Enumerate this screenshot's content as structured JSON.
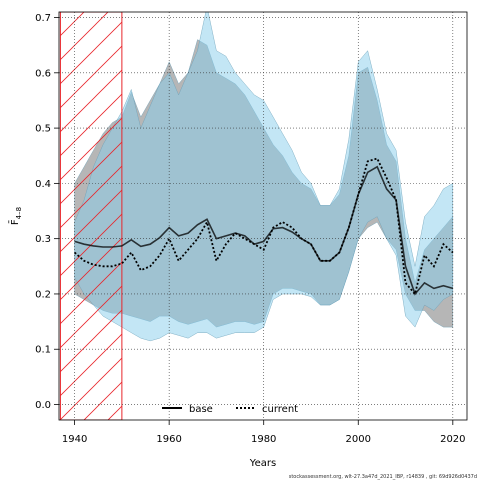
{
  "chart_data": {
    "type": "line",
    "title": "",
    "xlabel": "Years",
    "ylabel": "F̄",
    "ylabel_sub": "4–8",
    "xlim": [
      1936.7,
      2023.0
    ],
    "ylim": [
      -0.028,
      0.71
    ],
    "xticks": [
      1940,
      1960,
      1980,
      2000,
      2020
    ],
    "yticks": [
      0.0,
      0.1,
      0.2,
      0.3,
      0.4,
      0.5,
      0.6,
      0.7
    ],
    "ytick_labels": [
      "0.0",
      "0.1",
      "0.2",
      "0.3",
      "0.4",
      "0.5",
      "0.6",
      "0.7"
    ],
    "grid": true,
    "legend_position": "bottom-center",
    "hatched_period": [
      1937,
      1950
    ],
    "series": [
      {
        "name": "base",
        "style": "solid",
        "color": "#000000",
        "band_color": "#a9a9a9",
        "x": [
          1940,
          1942,
          1944,
          1946,
          1948,
          1950,
          1952,
          1954,
          1956,
          1958,
          1960,
          1962,
          1964,
          1966,
          1968,
          1970,
          1972,
          1974,
          1976,
          1978,
          1980,
          1982,
          1984,
          1986,
          1988,
          1990,
          1992,
          1994,
          1996,
          1998,
          2000,
          2002,
          2004,
          2006,
          2008,
          2010,
          2012,
          2014,
          2016,
          2018,
          2020
        ],
        "values": [
          0.295,
          0.29,
          0.287,
          0.285,
          0.285,
          0.287,
          0.298,
          0.286,
          0.29,
          0.302,
          0.32,
          0.305,
          0.31,
          0.325,
          0.335,
          0.3,
          0.305,
          0.31,
          0.305,
          0.29,
          0.295,
          0.318,
          0.32,
          0.312,
          0.3,
          0.29,
          0.26,
          0.26,
          0.275,
          0.32,
          0.38,
          0.42,
          0.43,
          0.39,
          0.37,
          0.25,
          0.2,
          0.22,
          0.21,
          0.215,
          0.21
        ],
        "lower": [
          0.2,
          0.19,
          0.18,
          0.17,
          0.165,
          0.165,
          0.16,
          0.155,
          0.15,
          0.16,
          0.16,
          0.15,
          0.145,
          0.15,
          0.155,
          0.14,
          0.145,
          0.15,
          0.15,
          0.145,
          0.15,
          0.2,
          0.21,
          0.21,
          0.205,
          0.2,
          0.18,
          0.18,
          0.19,
          0.24,
          0.3,
          0.32,
          0.33,
          0.3,
          0.28,
          0.2,
          0.17,
          0.17,
          0.15,
          0.14,
          0.14
        ],
        "upper": [
          0.4,
          0.43,
          0.46,
          0.49,
          0.51,
          0.52,
          0.565,
          0.52,
          0.55,
          0.58,
          0.62,
          0.58,
          0.6,
          0.66,
          0.65,
          0.6,
          0.59,
          0.58,
          0.56,
          0.53,
          0.5,
          0.47,
          0.45,
          0.42,
          0.4,
          0.39,
          0.36,
          0.36,
          0.38,
          0.45,
          0.6,
          0.61,
          0.55,
          0.47,
          0.44,
          0.3,
          0.22,
          0.28,
          0.3,
          0.32,
          0.34
        ]
      },
      {
        "name": "current",
        "style": "dotted",
        "color": "#000000",
        "band_color": "#87ceeb",
        "x": [
          1940,
          1942,
          1944,
          1946,
          1948,
          1950,
          1952,
          1954,
          1956,
          1958,
          1960,
          1962,
          1964,
          1966,
          1968,
          1970,
          1972,
          1974,
          1976,
          1978,
          1980,
          1982,
          1984,
          1986,
          1988,
          1990,
          1992,
          1994,
          1996,
          1998,
          2000,
          2002,
          2004,
          2006,
          2008,
          2010,
          2012,
          2014,
          2016,
          2018,
          2020
        ],
        "values": [
          0.275,
          0.26,
          0.253,
          0.25,
          0.25,
          0.255,
          0.275,
          0.243,
          0.25,
          0.27,
          0.3,
          0.26,
          0.28,
          0.3,
          0.33,
          0.26,
          0.29,
          0.31,
          0.3,
          0.29,
          0.28,
          0.32,
          0.33,
          0.32,
          0.3,
          0.29,
          0.26,
          0.26,
          0.275,
          0.32,
          0.38,
          0.44,
          0.445,
          0.41,
          0.37,
          0.22,
          0.2,
          0.27,
          0.25,
          0.29,
          0.275
        ],
        "lower": [
          0.23,
          0.2,
          0.18,
          0.16,
          0.15,
          0.14,
          0.13,
          0.12,
          0.115,
          0.12,
          0.13,
          0.125,
          0.12,
          0.13,
          0.13,
          0.12,
          0.125,
          0.13,
          0.13,
          0.13,
          0.14,
          0.19,
          0.2,
          0.2,
          0.2,
          0.195,
          0.18,
          0.18,
          0.19,
          0.24,
          0.3,
          0.33,
          0.34,
          0.3,
          0.27,
          0.16,
          0.14,
          0.18,
          0.17,
          0.19,
          0.2
        ],
        "upper": [
          0.33,
          0.37,
          0.43,
          0.47,
          0.5,
          0.53,
          0.57,
          0.5,
          0.54,
          0.58,
          0.6,
          0.56,
          0.6,
          0.64,
          0.72,
          0.64,
          0.63,
          0.6,
          0.58,
          0.56,
          0.55,
          0.52,
          0.49,
          0.46,
          0.42,
          0.4,
          0.36,
          0.36,
          0.39,
          0.48,
          0.62,
          0.64,
          0.57,
          0.49,
          0.46,
          0.33,
          0.25,
          0.34,
          0.36,
          0.39,
          0.4
        ]
      }
    ],
    "legend": [
      {
        "label": "base",
        "style": "solid"
      },
      {
        "label": "current",
        "style": "dotted"
      }
    ],
    "footer": "stockassessment.org, wlt-27.3a47d_2021_IBP, r14839 , git: 69d926d0437d"
  }
}
